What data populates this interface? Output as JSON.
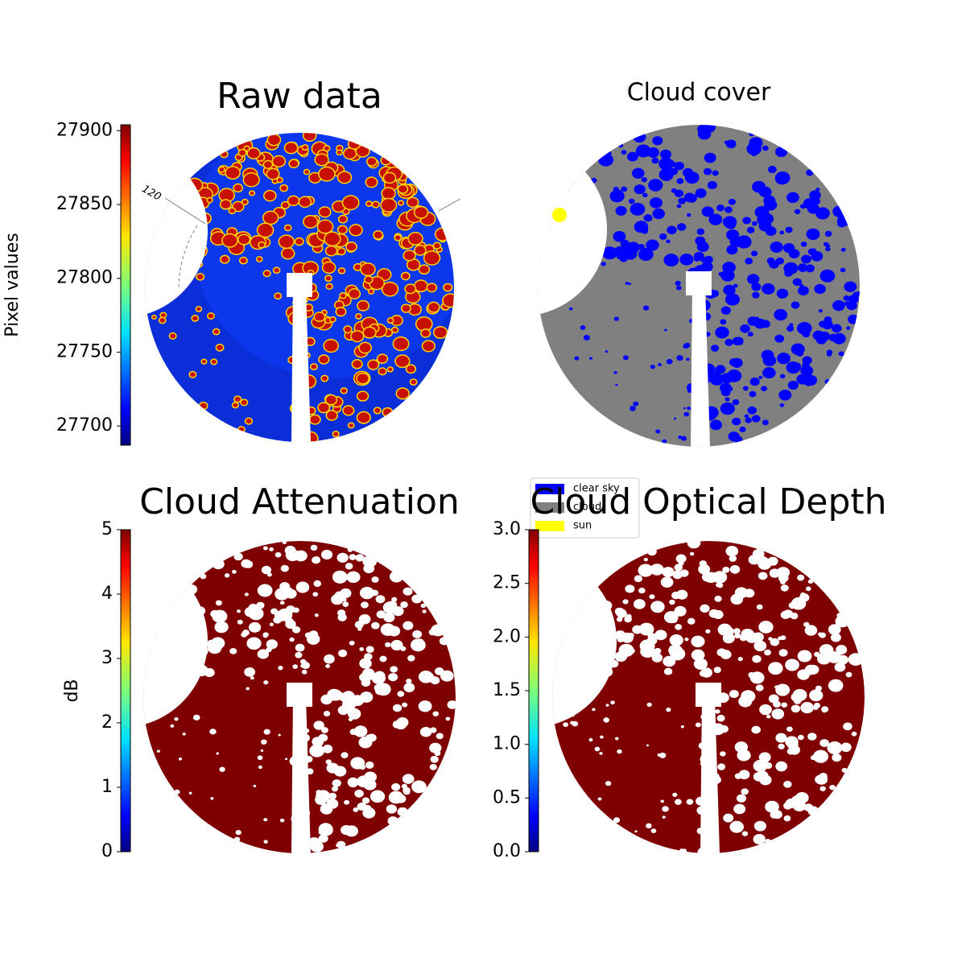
{
  "chart_data": [
    {
      "type": "image",
      "title": "Raw data",
      "colorbar_label": "Pixel values",
      "colormap": "jet",
      "ylim": [
        27687,
        27904
      ],
      "yticks": [
        27700,
        27750,
        27800,
        27850,
        27900
      ],
      "annotation": "120"
    },
    {
      "type": "image",
      "title": "Cloud cover",
      "legend": [
        {
          "name": "clear sky",
          "color": "#0000ff"
        },
        {
          "name": "cloud",
          "color": "#808080"
        },
        {
          "name": "sun",
          "color": "#ffff00"
        }
      ]
    },
    {
      "type": "image",
      "title": "Cloud Attenuation",
      "colorbar_label": "dB",
      "colormap": "jet",
      "ylim": [
        0,
        5
      ],
      "yticks": [
        0,
        1,
        2,
        3,
        4,
        5
      ]
    },
    {
      "type": "image",
      "title": "Cloud Optical Depth",
      "colormap": "jet",
      "ylim": [
        0,
        3
      ],
      "yticks": [
        {
          "value": 0,
          "label": "0.0"
        },
        {
          "value": 0.5,
          "label": "0.5"
        },
        {
          "value": 1,
          "label": "1.0"
        },
        {
          "value": 1.5,
          "label": "1.5"
        },
        {
          "value": 2,
          "label": "2.0"
        },
        {
          "value": 2.5,
          "label": "2.5"
        },
        {
          "value": 3,
          "label": "3.0"
        }
      ]
    }
  ]
}
